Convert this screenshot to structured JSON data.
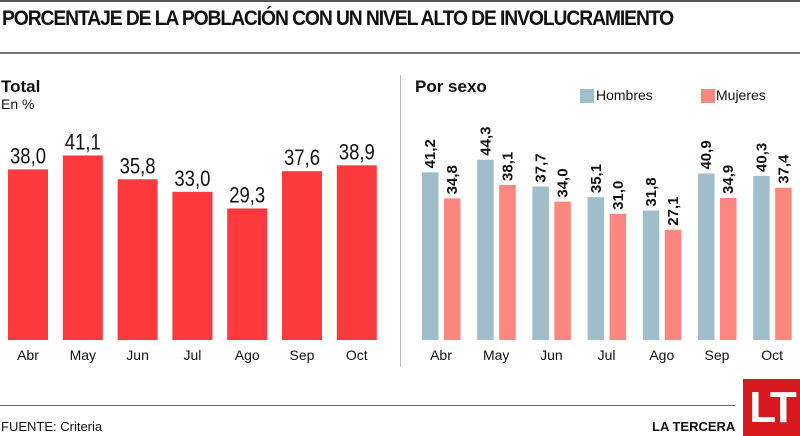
{
  "title": "PORCENTAJE DE LA POBLACIÓN CON UN NIVEL ALTO DE INVOLUCRAMIENTO",
  "source": "FUENTE: Criteria",
  "brand": "LA TERCERA",
  "logo_text": "LT",
  "colors": {
    "total": "#fc3a3d",
    "hombres": "#9fbec9",
    "mujeres": "#fc8680",
    "logo": "#d7191f"
  },
  "chart_data": [
    {
      "type": "bar",
      "title": "Total",
      "subtitle": "En %",
      "categories": [
        "Abr",
        "May",
        "Jun",
        "Jul",
        "Ago",
        "Sep",
        "Oct"
      ],
      "values": [
        38.0,
        41.1,
        35.8,
        33.0,
        29.3,
        37.6,
        38.9
      ],
      "labels": [
        "38,0",
        "41,1",
        "35,8",
        "33,0",
        "29,3",
        "37,6",
        "38,9"
      ],
      "xlabel": "",
      "ylabel": "",
      "ylim": [
        0,
        45
      ],
      "grid": false
    },
    {
      "type": "bar",
      "title": "Por sexo",
      "categories": [
        "Abr",
        "May",
        "Jun",
        "Jul",
        "Ago",
        "Sep",
        "Oct"
      ],
      "legend_position": "top-right",
      "series": [
        {
          "name": "Hombres",
          "values": [
            41.2,
            44.3,
            37.7,
            35.1,
            31.8,
            40.9,
            40.3
          ],
          "labels": [
            "41,2",
            "44,3",
            "37,7",
            "35,1",
            "31,8",
            "40,9",
            "40,3"
          ]
        },
        {
          "name": "Mujeres",
          "values": [
            34.8,
            38.1,
            34.0,
            31.0,
            27.1,
            34.9,
            37.4
          ],
          "labels": [
            "34,8",
            "38,1",
            "34,0",
            "31,0",
            "27,1",
            "34,9",
            "37,4"
          ]
        }
      ],
      "xlabel": "",
      "ylabel": "",
      "ylim": [
        0,
        50
      ],
      "grid": false
    }
  ]
}
